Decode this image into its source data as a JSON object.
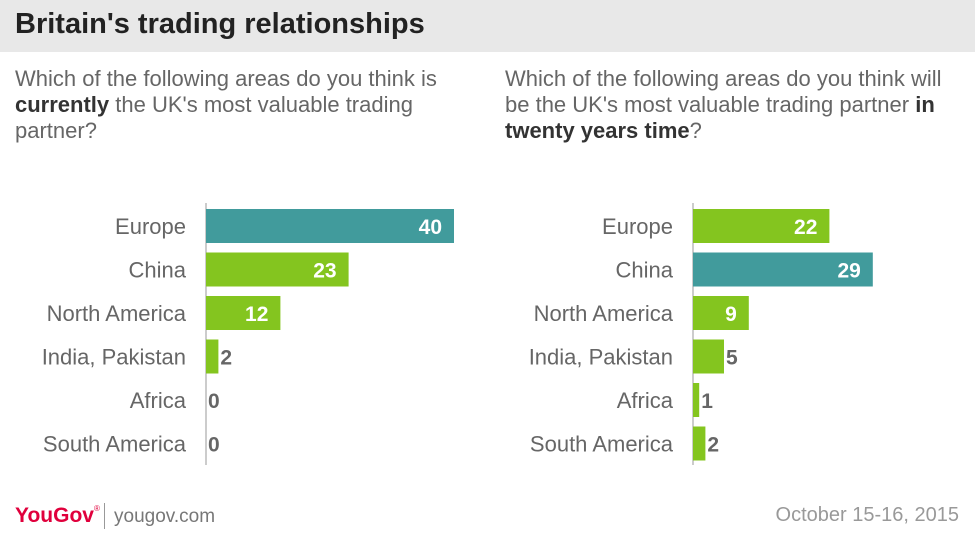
{
  "header": {
    "title": "Britain's trading relationships"
  },
  "questions": {
    "left": {
      "before": "Which of the following areas do you think is ",
      "emph": "currently",
      "after": " the UK's most valuable trading partner?"
    },
    "right": {
      "before": "Which of the following areas do you think will be the UK's most valuable trading partner ",
      "emph": "in twenty years time",
      "after": "?"
    }
  },
  "colors": {
    "highlight": "#419b9c",
    "bar": "#84c51f",
    "axis": "#cccccc",
    "label": "#666666"
  },
  "chart_data": [
    {
      "type": "bar",
      "orientation": "horizontal",
      "categories": [
        "Europe",
        "China",
        "North America",
        "India, Pakistan",
        "Africa",
        "South America"
      ],
      "values": [
        40,
        23,
        12,
        2,
        0,
        0
      ],
      "highlight_category": "Europe",
      "xlim": [
        0,
        42
      ]
    },
    {
      "type": "bar",
      "orientation": "horizontal",
      "categories": [
        "Europe",
        "China",
        "North America",
        "India, Pakistan",
        "Africa",
        "South America"
      ],
      "values": [
        22,
        29,
        9,
        5,
        1,
        2
      ],
      "highlight_category": "China",
      "xlim": [
        0,
        42
      ]
    }
  ],
  "footer": {
    "brand": "YouGov",
    "site": "yougov.com",
    "date": "October 15-16, 2015"
  }
}
